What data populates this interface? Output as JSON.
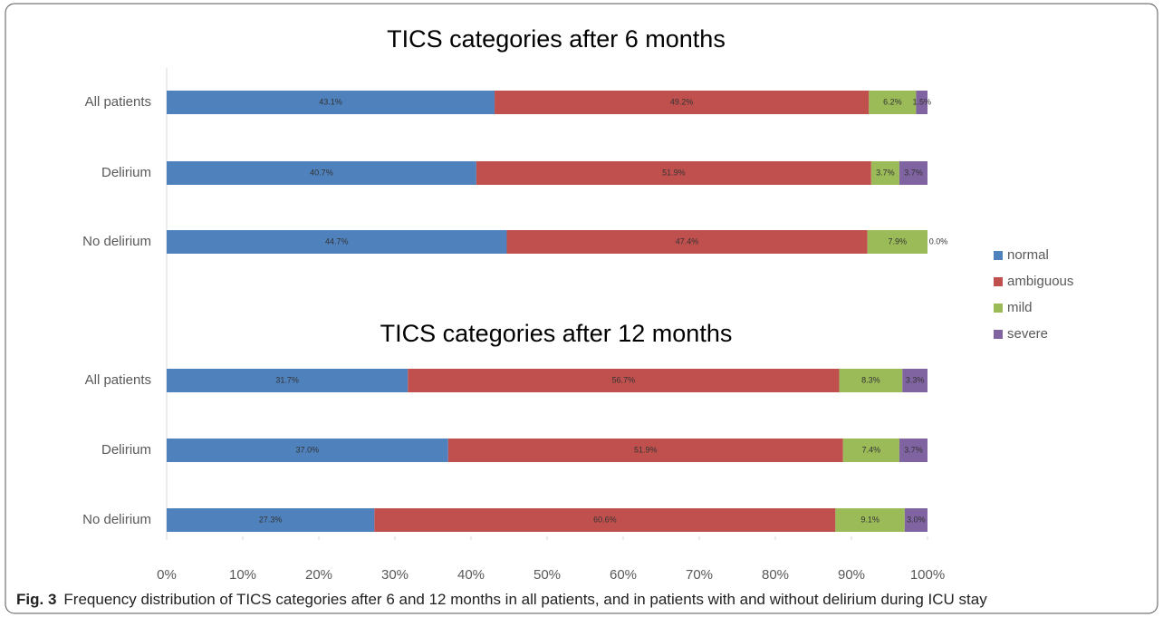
{
  "chart_data": [
    {
      "type": "stacked-bar-horizontal",
      "title": "TICS categories after 6 months",
      "categories": [
        "All patients",
        "Delirium",
        "No delirium"
      ],
      "series": [
        {
          "name": "normal",
          "color": "#4f81bd",
          "values": [
            43.1,
            40.7,
            44.7
          ],
          "value_labels": [
            "43.1%",
            "40.7%",
            "44.7%"
          ]
        },
        {
          "name": "ambiguous",
          "color": "#c0504d",
          "values": [
            49.2,
            51.9,
            47.4
          ],
          "value_labels": [
            "49.2%",
            "51.9%",
            "47.4%"
          ]
        },
        {
          "name": "mild",
          "color": "#9bbb59",
          "values": [
            6.2,
            3.7,
            7.9
          ],
          "value_labels": [
            "6.2%",
            "3.7%",
            "7.9%"
          ]
        },
        {
          "name": "severe",
          "color": "#8064a2",
          "values": [
            1.5,
            3.7,
            0.0
          ],
          "value_labels": [
            "1.5%",
            "3.7%",
            "0.0%"
          ]
        }
      ],
      "xlim": [
        0,
        100
      ],
      "legend": "right"
    },
    {
      "type": "stacked-bar-horizontal",
      "title": "TICS categories after 12 months",
      "categories": [
        "All patients",
        "Delirium",
        "No delirium"
      ],
      "series": [
        {
          "name": "normal",
          "color": "#4f81bd",
          "values": [
            31.7,
            37.0,
            27.3
          ],
          "value_labels": [
            "31.7%",
            "37.0%",
            "27.3%"
          ]
        },
        {
          "name": "ambiguous",
          "color": "#c0504d",
          "values": [
            56.7,
            51.9,
            60.6
          ],
          "value_labels": [
            "56.7%",
            "51.9%",
            "60.6%"
          ]
        },
        {
          "name": "mild",
          "color": "#9bbb59",
          "values": [
            8.3,
            7.4,
            9.1
          ],
          "value_labels": [
            "8.3%",
            "7.4%",
            "9.1%"
          ]
        },
        {
          "name": "severe",
          "color": "#8064a2",
          "values": [
            3.3,
            3.7,
            3.0
          ],
          "value_labels": [
            "3.3%",
            "3.7%",
            "3.0%"
          ]
        }
      ],
      "xlim": [
        0,
        100
      ],
      "xticks": [
        {
          "value": 0,
          "label": "0%"
        },
        {
          "value": 10,
          "label": "10%"
        },
        {
          "value": 20,
          "label": "20%"
        },
        {
          "value": 30,
          "label": "30%"
        },
        {
          "value": 40,
          "label": "40%"
        },
        {
          "value": 50,
          "label": "50%"
        },
        {
          "value": 60,
          "label": "60%"
        },
        {
          "value": 70,
          "label": "70%"
        },
        {
          "value": 80,
          "label": "80%"
        },
        {
          "value": 90,
          "label": "90%"
        },
        {
          "value": 100,
          "label": "100%"
        }
      ]
    }
  ],
  "caption": {
    "label": "Fig. 3",
    "text": "Frequency distribution of TICS categories after 6 and 12 months in all patients, and in patients with and without delirium during ICU stay"
  }
}
